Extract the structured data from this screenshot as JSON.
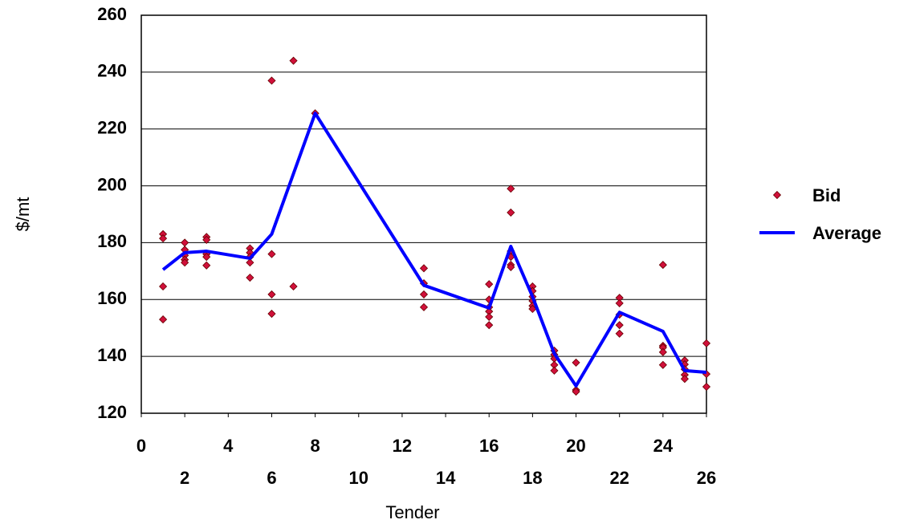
{
  "chart_data": {
    "type": "scatter",
    "x_label": "Tender",
    "y_label": "$/mt",
    "xlim": [
      0,
      26
    ],
    "ylim": [
      120,
      260
    ],
    "xticks": [
      0,
      2,
      4,
      6,
      8,
      10,
      12,
      14,
      16,
      18,
      20,
      22,
      24,
      26
    ],
    "yticks": [
      120,
      140,
      160,
      180,
      200,
      220,
      240,
      260
    ],
    "grid": true,
    "legend": "right",
    "series": [
      {
        "name": "Bid",
        "style": "markers",
        "color": "#d0103a",
        "x": [
          1,
          1,
          1,
          1,
          2,
          2,
          2,
          2,
          2,
          3,
          3,
          3,
          3,
          3,
          5,
          5,
          5,
          5,
          5,
          6,
          6,
          6,
          6,
          7,
          7,
          8,
          13,
          13,
          13,
          13,
          16,
          16,
          16,
          16,
          16,
          16,
          17,
          17,
          17,
          17,
          17,
          17,
          18,
          18,
          18,
          18,
          18,
          18,
          19,
          19,
          19,
          19,
          19,
          20,
          20,
          20,
          22,
          22,
          22,
          22,
          22,
          24,
          24,
          24,
          24,
          24,
          25,
          25,
          25,
          25,
          25,
          26,
          26,
          26
        ],
        "values": [
          183,
          181.5,
          164.6,
          153,
          180,
          177.5,
          175.5,
          174,
          173,
          182,
          181,
          176,
          175,
          172,
          178,
          176.5,
          175,
          173,
          167.7,
          237,
          176,
          161.8,
          155,
          244,
          164.6,
          225.5,
          171,
          165.7,
          161.8,
          157.3,
          165.4,
          160,
          157.3,
          155.8,
          153.9,
          151,
          199,
          190.6,
          177,
          175,
          172.2,
          171.4,
          164.6,
          163,
          161,
          159.5,
          157.8,
          156.7,
          142,
          140.6,
          139.2,
          137,
          135,
          137.8,
          128.2,
          127.6,
          160.6,
          158.7,
          154.7,
          151,
          148,
          172.2,
          143.7,
          143.1,
          141.5,
          137,
          138.6,
          137.2,
          135.5,
          133.5,
          132.1,
          144.6,
          133.8,
          129.3
        ]
      },
      {
        "name": "Average",
        "style": "line",
        "color": "#0000ff",
        "x": [
          1,
          2,
          3,
          5,
          6,
          8,
          13,
          16,
          17,
          18,
          19,
          20,
          22,
          24,
          25,
          26
        ],
        "values": [
          170.5,
          176.5,
          177,
          174.5,
          183,
          225.5,
          165,
          157,
          178.7,
          161,
          141,
          129.6,
          155.5,
          148.8,
          135,
          134.4
        ]
      }
    ]
  }
}
